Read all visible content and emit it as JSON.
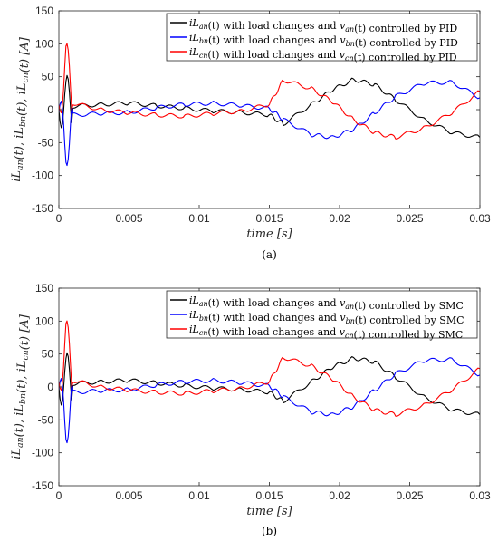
{
  "chart_data": [
    {
      "panel": "(a)",
      "type": "line",
      "xlabel": "time [s]",
      "ylabel": "iL_an(t), iL_bn(t), iL_cn(t) [A]",
      "xlim": [
        0,
        0.03
      ],
      "ylim": [
        -150,
        150
      ],
      "xticks": [
        "0",
        "0.005",
        "0.01",
        "0.015",
        "0.02",
        "0.025",
        "0.03"
      ],
      "yticks": [
        "-150",
        "-100",
        "-50",
        "0",
        "50",
        "100",
        "150"
      ],
      "legend_position": "top-right",
      "series": [
        {
          "name": "iL_an(t) with load changes and v_an(t) controlled by PID",
          "color": "#000000",
          "x": [
            0,
            0.0005,
            0.001,
            0.003,
            0.005,
            0.007,
            0.009,
            0.011,
            0.013,
            0.015,
            0.016,
            0.018,
            0.0195,
            0.021,
            0.0225,
            0.024,
            0.026,
            0.028,
            0.03
          ],
          "y": [
            0,
            20,
            5,
            8,
            10,
            6,
            2,
            -2,
            -4,
            -8,
            -22,
            8,
            30,
            46,
            38,
            15,
            -15,
            -35,
            -42
          ]
        },
        {
          "name": "iL_bn(t) with load changes and v_bn(t) controlled by PID",
          "color": "#0000ff",
          "x": [
            0,
            0.0005,
            0.001,
            0.003,
            0.005,
            0.007,
            0.009,
            0.011,
            0.013,
            0.015,
            0.016,
            0.018,
            0.0195,
            0.021,
            0.0225,
            0.024,
            0.026,
            0.028,
            0.03
          ],
          "y": [
            0,
            -60,
            -8,
            -6,
            -4,
            3,
            8,
            10,
            6,
            2,
            -15,
            -38,
            -42,
            -30,
            -5,
            20,
            40,
            42,
            18
          ]
        },
        {
          "name": "iL_cn(t) with load changes and v_cn(t) controlled by PID",
          "color": "#ff0000",
          "x": [
            0,
            0.0005,
            0.001,
            0.003,
            0.005,
            0.007,
            0.009,
            0.011,
            0.013,
            0.015,
            0.016,
            0.018,
            0.0195,
            0.021,
            0.0225,
            0.024,
            0.026,
            0.028,
            0.03
          ],
          "y": [
            0,
            80,
            10,
            0,
            -5,
            -8,
            -10,
            -6,
            -2,
            8,
            45,
            32,
            12,
            -15,
            -35,
            -42,
            -28,
            -5,
            28
          ]
        }
      ]
    },
    {
      "panel": "(b)",
      "type": "line",
      "xlabel": "time [s]",
      "ylabel": "iL_an(t), iL_bn(t), iL_cn(t) [A]",
      "xlim": [
        0,
        0.03
      ],
      "ylim": [
        -150,
        150
      ],
      "xticks": [
        "0",
        "0.005",
        "0.01",
        "0.015",
        "0.02",
        "0.025",
        "0.03"
      ],
      "yticks": [
        "-150",
        "-100",
        "-50",
        "0",
        "50",
        "100",
        "150"
      ],
      "legend_position": "top-right",
      "series": [
        {
          "name": "iL_an(t) with load changes and v_an(t) controlled by SMC",
          "color": "#000000",
          "x": [
            0,
            0.0005,
            0.001,
            0.003,
            0.005,
            0.007,
            0.009,
            0.011,
            0.013,
            0.015,
            0.016,
            0.018,
            0.0195,
            0.021,
            0.0225,
            0.024,
            0.026,
            0.028,
            0.03
          ],
          "y": [
            0,
            20,
            5,
            8,
            10,
            6,
            2,
            -2,
            -4,
            -8,
            -22,
            8,
            30,
            44,
            38,
            15,
            -15,
            -35,
            -42
          ]
        },
        {
          "name": "iL_bn(t) with load changes and v_bn(t) controlled by SMC",
          "color": "#0000ff",
          "x": [
            0,
            0.0005,
            0.001,
            0.003,
            0.005,
            0.007,
            0.009,
            0.011,
            0.013,
            0.015,
            0.016,
            0.018,
            0.0195,
            0.021,
            0.0225,
            0.024,
            0.026,
            0.028,
            0.03
          ],
          "y": [
            0,
            -60,
            -8,
            -6,
            -4,
            3,
            8,
            10,
            6,
            2,
            -15,
            -38,
            -42,
            -30,
            -5,
            20,
            40,
            42,
            18
          ]
        },
        {
          "name": "iL_cn(t) with load changes and v_cn(t) controlled by SMC",
          "color": "#ff0000",
          "x": [
            0,
            0.0005,
            0.001,
            0.003,
            0.005,
            0.007,
            0.009,
            0.011,
            0.013,
            0.015,
            0.016,
            0.018,
            0.0195,
            0.021,
            0.0225,
            0.024,
            0.026,
            0.028,
            0.03
          ],
          "y": [
            0,
            80,
            10,
            0,
            -5,
            -8,
            -10,
            -6,
            -2,
            8,
            45,
            32,
            12,
            -15,
            -35,
            -42,
            -28,
            -5,
            28
          ]
        }
      ]
    }
  ]
}
